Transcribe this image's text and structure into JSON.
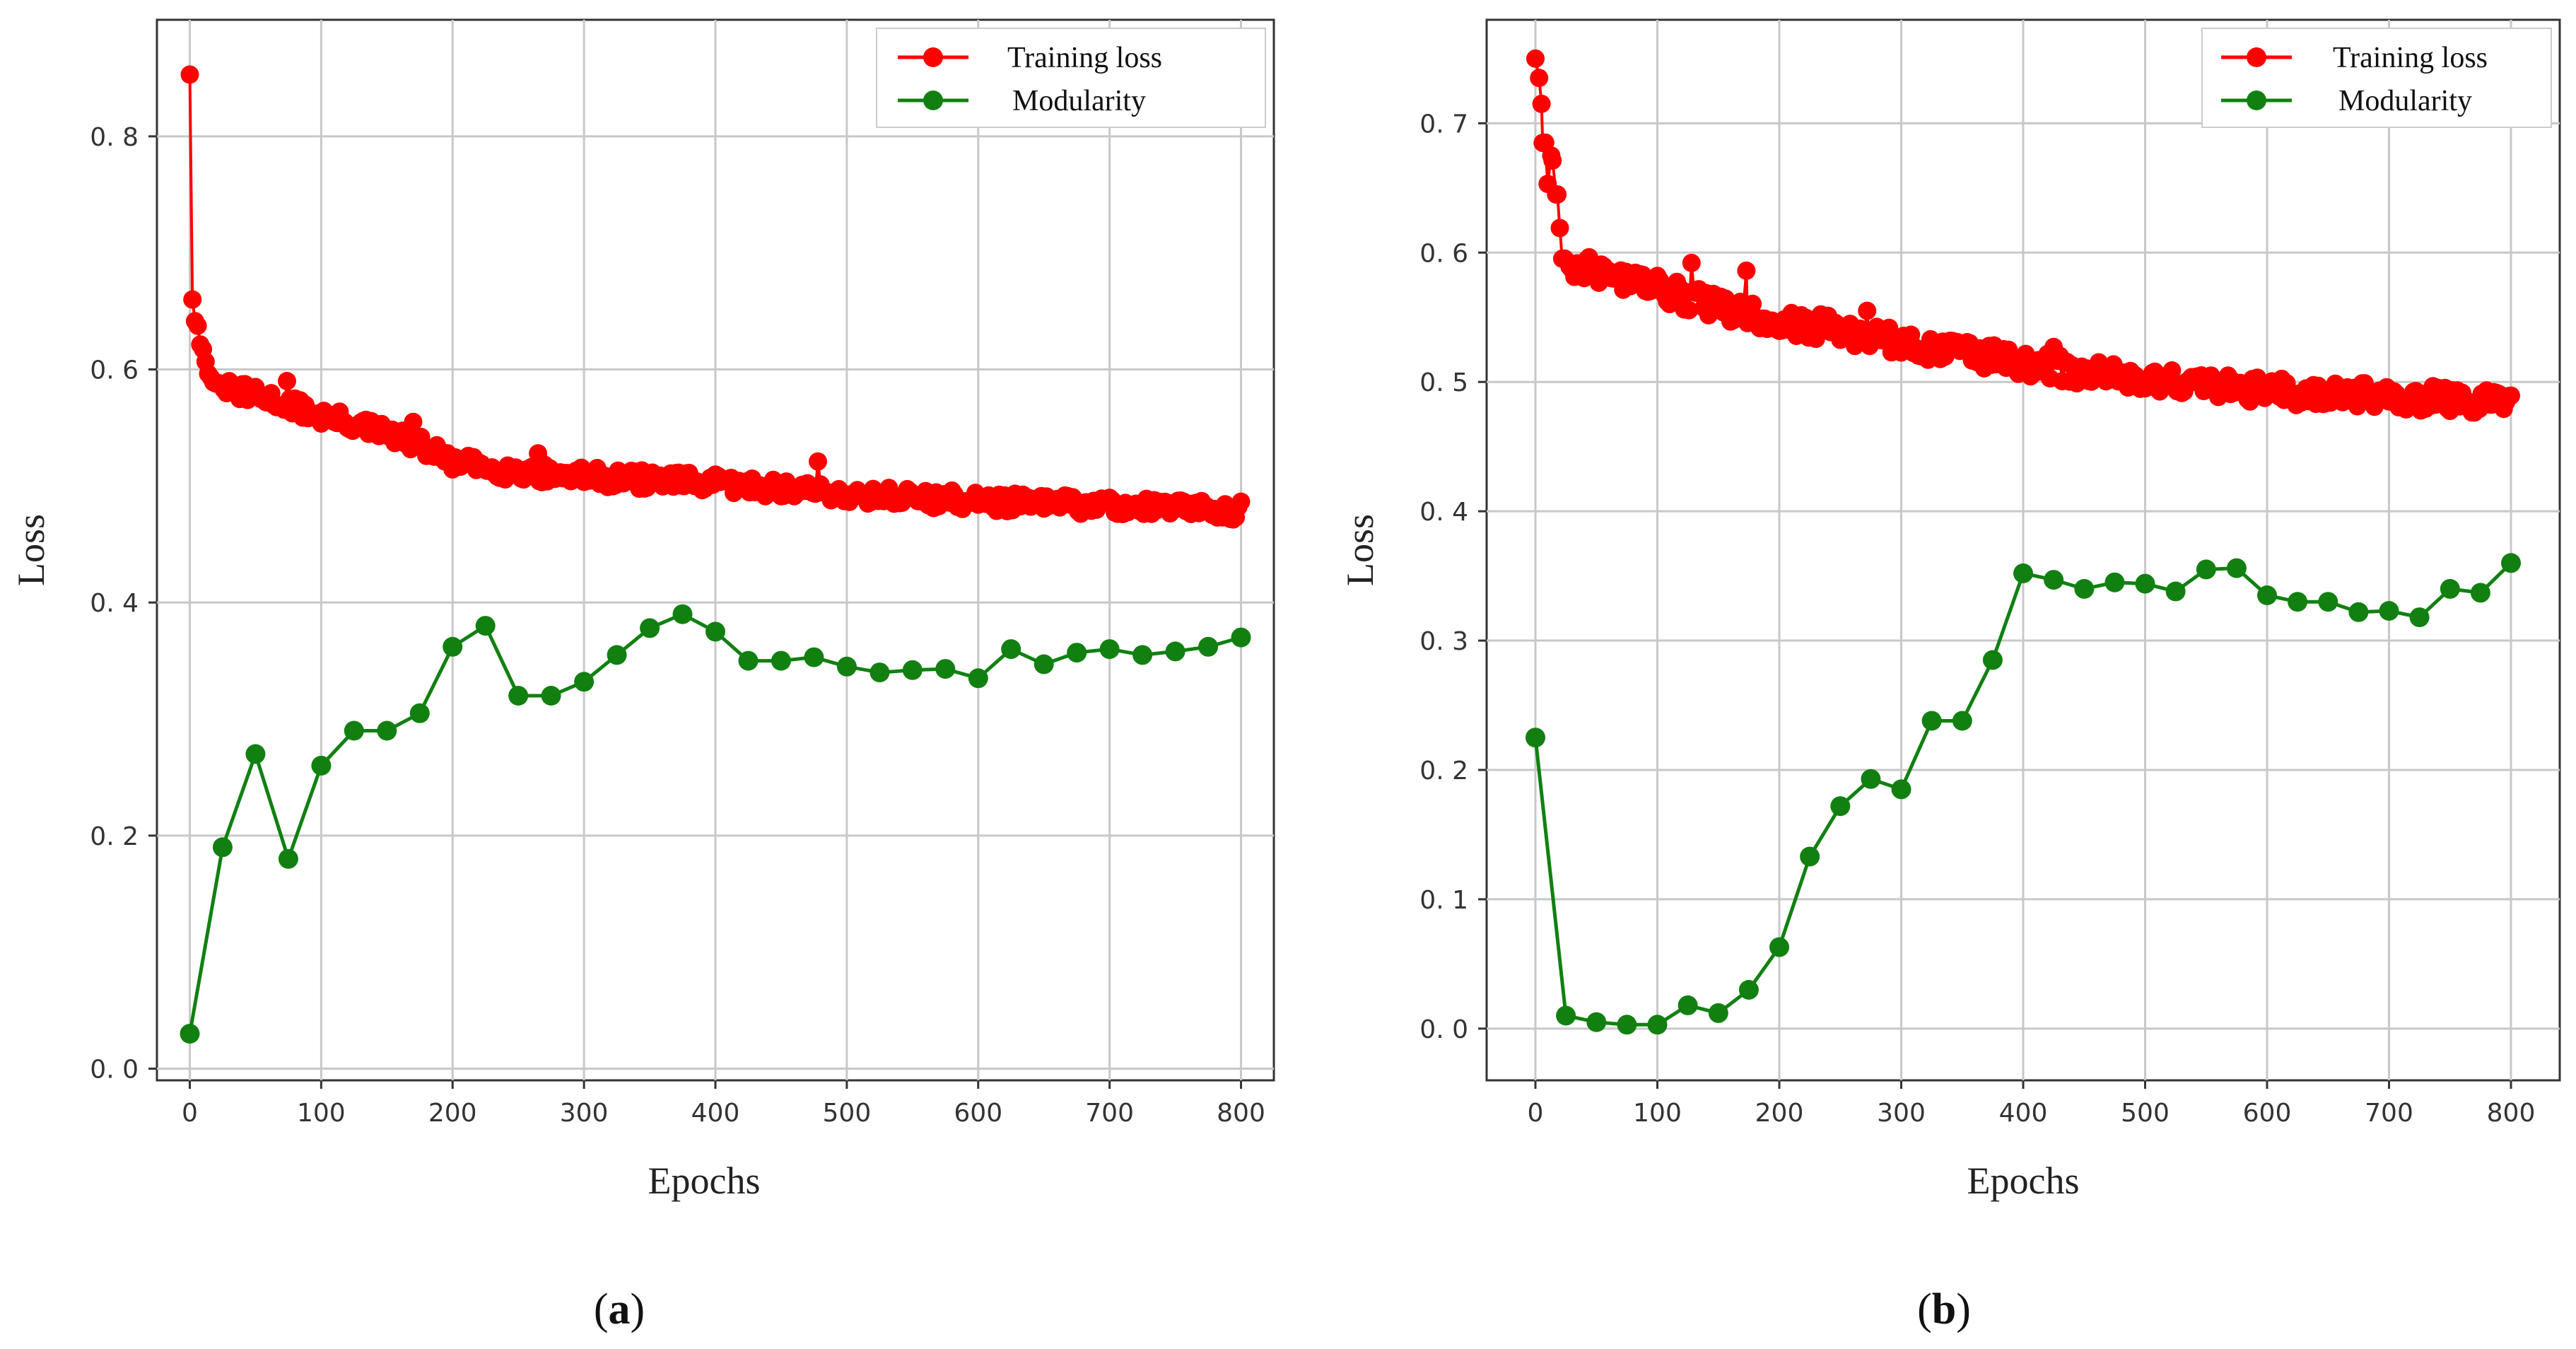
{
  "panels": [
    {
      "caption_prefix": "(",
      "caption_letter": "a",
      "caption_suffix": ")",
      "legend": {
        "training_label": "Training loss",
        "modularity_label": "Modularity"
      },
      "colors": {
        "training": "#ff0000",
        "modularity": "#118011"
      }
    },
    {
      "caption_prefix": "(",
      "caption_letter": "b",
      "caption_suffix": ")",
      "legend": {
        "training_label": "Training loss",
        "modularity_label": "Modularity"
      },
      "colors": {
        "training": "#ff0000",
        "modularity": "#118011"
      }
    }
  ],
  "chart_data": [
    {
      "type": "line",
      "title": "",
      "xlabel": "Epochs",
      "ylabel": "Loss",
      "xlim": [
        -25,
        825
      ],
      "ylim": [
        -0.01,
        0.9
      ],
      "xticks": [
        0,
        100,
        200,
        300,
        400,
        500,
        600,
        700,
        800
      ],
      "yticks": [
        0.0,
        0.2,
        0.4,
        0.6,
        0.8
      ],
      "ytick_labels": [
        "0. 0",
        "0. 2",
        "0. 4",
        "0. 6",
        "0. 8"
      ],
      "grid": true,
      "legend_position": "top-right",
      "series": [
        {
          "name": "Training loss",
          "generated": true,
          "anchors": [
            [
              0,
              0.855
            ],
            [
              1,
              0.745
            ],
            [
              2,
              0.66
            ],
            [
              4,
              0.645
            ],
            [
              8,
              0.625
            ],
            [
              12,
              0.605
            ],
            [
              20,
              0.585
            ],
            [
              40,
              0.58
            ],
            [
              60,
              0.575
            ],
            [
              80,
              0.568
            ],
            [
              100,
              0.56
            ],
            [
              125,
              0.553
            ],
            [
              150,
              0.545
            ],
            [
              175,
              0.535
            ],
            [
              200,
              0.52
            ],
            [
              250,
              0.512
            ],
            [
              300,
              0.508
            ],
            [
              350,
              0.505
            ],
            [
              400,
              0.502
            ],
            [
              450,
              0.498
            ],
            [
              500,
              0.493
            ],
            [
              550,
              0.49
            ],
            [
              600,
              0.487
            ],
            [
              700,
              0.483
            ],
            [
              800,
              0.479
            ]
          ],
          "spikes": [
            [
              2,
              0.66
            ],
            [
              74,
              0.59
            ],
            [
              170,
              0.555
            ],
            [
              265,
              0.528
            ],
            [
              478,
              0.521
            ]
          ],
          "noise": 0.008
        },
        {
          "name": "Modularity",
          "x": [
            0,
            25,
            50,
            75,
            100,
            125,
            150,
            175,
            200,
            225,
            250,
            275,
            300,
            325,
            350,
            375,
            400,
            425,
            450,
            475,
            500,
            525,
            550,
            575,
            600,
            625,
            650,
            675,
            700,
            725,
            750,
            775,
            800
          ],
          "y": [
            0.03,
            0.19,
            0.27,
            0.18,
            0.26,
            0.29,
            0.29,
            0.305,
            0.362,
            0.38,
            0.32,
            0.32,
            0.332,
            0.355,
            0.378,
            0.39,
            0.375,
            0.35,
            0.35,
            0.353,
            0.345,
            0.34,
            0.342,
            0.343,
            0.335,
            0.36,
            0.347,
            0.357,
            0.36,
            0.355,
            0.358,
            0.362,
            0.37
          ]
        }
      ]
    },
    {
      "type": "line",
      "title": "",
      "xlabel": "Epochs",
      "ylabel": "Loss",
      "xlim": [
        -40,
        840
      ],
      "ylim": [
        -0.04,
        0.78
      ],
      "xticks": [
        0,
        100,
        200,
        300,
        400,
        500,
        600,
        700,
        800
      ],
      "yticks": [
        0.0,
        0.1,
        0.2,
        0.3,
        0.4,
        0.5,
        0.6,
        0.7
      ],
      "ytick_labels": [
        "0. 0",
        "0. 1",
        "0. 2",
        "0. 3",
        "0. 4",
        "0. 5",
        "0. 6",
        "0. 7"
      ],
      "grid": true,
      "legend_position": "top-right",
      "series": [
        {
          "name": "Training loss",
          "generated": true,
          "anchors": [
            [
              0,
              0.75
            ],
            [
              2,
              0.74
            ],
            [
              4,
              0.715
            ],
            [
              6,
              0.68
            ],
            [
              10,
              0.655
            ],
            [
              14,
              0.675
            ],
            [
              18,
              0.645
            ],
            [
              22,
              0.6
            ],
            [
              30,
              0.59
            ],
            [
              50,
              0.585
            ],
            [
              75,
              0.58
            ],
            [
              100,
              0.572
            ],
            [
              125,
              0.565
            ],
            [
              150,
              0.558
            ],
            [
              175,
              0.552
            ],
            [
              200,
              0.547
            ],
            [
              250,
              0.54
            ],
            [
              300,
              0.53
            ],
            [
              350,
              0.522
            ],
            [
              400,
              0.515
            ],
            [
              450,
              0.508
            ],
            [
              500,
              0.502
            ],
            [
              550,
              0.497
            ],
            [
              600,
              0.493
            ],
            [
              700,
              0.489
            ],
            [
              800,
              0.485
            ]
          ],
          "spikes": [
            [
              0,
              0.75
            ],
            [
              3,
              0.735
            ],
            [
              5,
              0.715
            ],
            [
              8,
              0.685
            ],
            [
              13,
              0.675
            ],
            [
              17,
              0.645
            ],
            [
              128,
              0.592
            ],
            [
              173,
              0.586
            ],
            [
              272,
              0.555
            ],
            [
              425,
              0.527
            ]
          ],
          "noise": 0.01
        },
        {
          "name": "Modularity",
          "x": [
            0,
            25,
            50,
            75,
            100,
            125,
            150,
            175,
            200,
            225,
            250,
            275,
            300,
            325,
            350,
            375,
            400,
            425,
            450,
            475,
            500,
            525,
            550,
            575,
            600,
            625,
            650,
            675,
            700,
            725,
            750,
            775,
            800
          ],
          "y": [
            0.225,
            0.01,
            0.005,
            0.003,
            0.003,
            0.018,
            0.012,
            0.03,
            0.063,
            0.133,
            0.172,
            0.193,
            0.185,
            0.238,
            0.238,
            0.285,
            0.352,
            0.347,
            0.34,
            0.345,
            0.344,
            0.338,
            0.355,
            0.356,
            0.335,
            0.33,
            0.33,
            0.322,
            0.323,
            0.318,
            0.34,
            0.337,
            0.36
          ]
        }
      ]
    }
  ]
}
